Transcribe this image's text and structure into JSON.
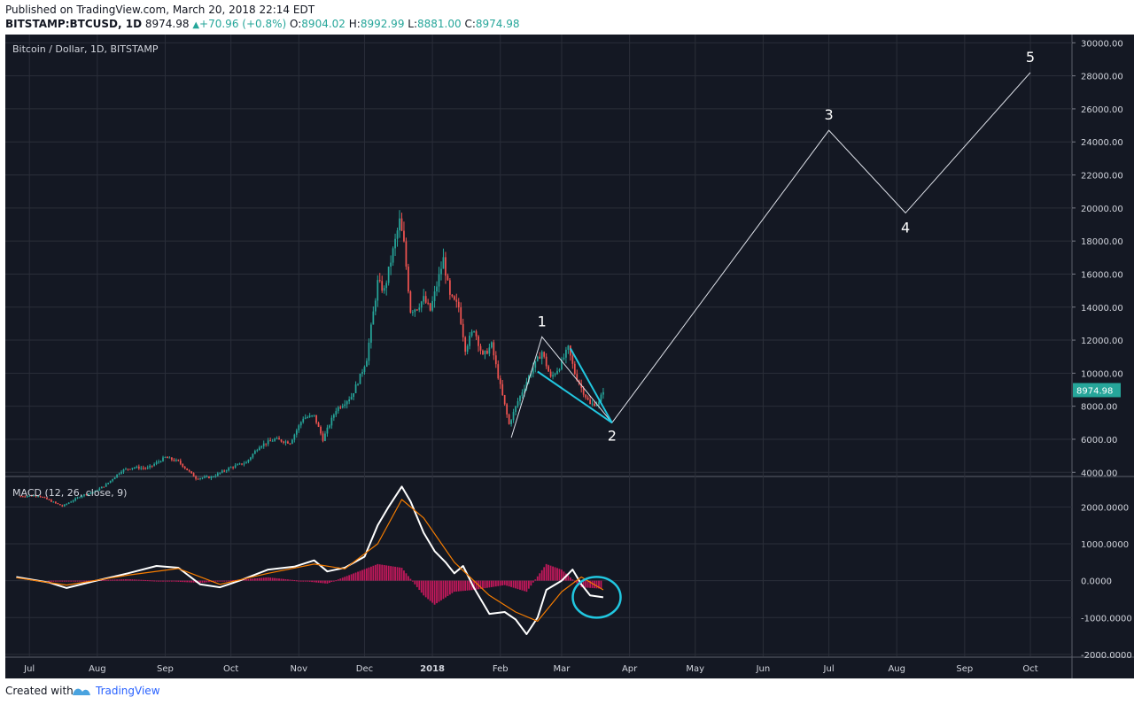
{
  "header": {
    "published": "Published on TradingView.com, March 20, 2018 22:14 EDT",
    "symbol": "BITSTAMP:BTCUSD, 1D",
    "last": "8974.98",
    "change": "+70.96 (+0.8%)",
    "o_label": "O:",
    "o": "8904.02",
    "h_label": "H:",
    "h": "8992.99",
    "l_label": "L:",
    "l": "8881.00",
    "c_label": "C:",
    "c": "8974.98"
  },
  "footer": {
    "created": "Created with",
    "brand": "TradingView",
    "logo_icon": "tradingview-logo-icon"
  },
  "colors": {
    "background": "#141823",
    "grid": "#2a2e39",
    "up": "#26a69a",
    "down": "#ef5350",
    "macd_line": "#ffffff",
    "signal_line": "#f57c00",
    "histogram": "#c2185b",
    "cyan": "#21c7e0",
    "price_badge": "#26a69a"
  },
  "chart_data": [
    {
      "type": "candlestick",
      "title": "Bitcoin / Dollar, 1D, BITSTAMP",
      "ylim": [
        3800,
        30500
      ],
      "y_ticks": [
        "30000.00",
        "28000.00",
        "26000.00",
        "24000.00",
        "22000.00",
        "20000.00",
        "18000.00",
        "16000.00",
        "14000.00",
        "12000.00",
        "10000.00",
        "8000.00",
        "6000.00",
        "4000.00"
      ],
      "x_ticks": [
        "Jul",
        "Aug",
        "Sep",
        "Oct",
        "Nov",
        "Dec",
        "2018",
        "Feb",
        "Mar",
        "Apr",
        "May",
        "Jun",
        "Jul",
        "Aug",
        "Sep",
        "Oct"
      ],
      "last_price_label": "8974.98",
      "price_path": [
        {
          "date": "2017-06-27",
          "close": 2550
        },
        {
          "date": "2017-07-05",
          "close": 2600
        },
        {
          "date": "2017-07-16",
          "close": 1950
        },
        {
          "date": "2017-07-25",
          "close": 2600
        },
        {
          "date": "2017-07-31",
          "close": 2850
        },
        {
          "date": "2017-08-05",
          "close": 3250
        },
        {
          "date": "2017-08-12",
          "close": 4100
        },
        {
          "date": "2017-08-17",
          "close": 4300
        },
        {
          "date": "2017-08-24",
          "close": 4250
        },
        {
          "date": "2017-09-01",
          "close": 4900
        },
        {
          "date": "2017-09-07",
          "close": 4650
        },
        {
          "date": "2017-09-15",
          "close": 3650
        },
        {
          "date": "2017-09-22",
          "close": 3700
        },
        {
          "date": "2017-10-01",
          "close": 4300
        },
        {
          "date": "2017-10-08",
          "close": 4600
        },
        {
          "date": "2017-10-14",
          "close": 5600
        },
        {
          "date": "2017-10-21",
          "close": 6000
        },
        {
          "date": "2017-10-28",
          "close": 5800
        },
        {
          "date": "2017-11-03",
          "close": 7300
        },
        {
          "date": "2017-11-08",
          "close": 7400
        },
        {
          "date": "2017-11-12",
          "close": 6000
        },
        {
          "date": "2017-11-18",
          "close": 7800
        },
        {
          "date": "2017-11-25",
          "close": 8600
        },
        {
          "date": "2017-11-29",
          "close": 9800
        },
        {
          "date": "2017-12-02",
          "close": 10900
        },
        {
          "date": "2017-12-07",
          "close": 15500
        },
        {
          "date": "2017-12-10",
          "close": 15000
        },
        {
          "date": "2017-12-13",
          "close": 16800
        },
        {
          "date": "2017-12-17",
          "close": 19200
        },
        {
          "date": "2017-12-19",
          "close": 17800
        },
        {
          "date": "2017-12-22",
          "close": 13800
        },
        {
          "date": "2017-12-25",
          "close": 14000
        },
        {
          "date": "2017-12-28",
          "close": 14500
        },
        {
          "date": "2017-12-31",
          "close": 13800
        },
        {
          "date": "2018-01-02",
          "close": 14800
        },
        {
          "date": "2018-01-06",
          "close": 16900
        },
        {
          "date": "2018-01-09",
          "close": 14600
        },
        {
          "date": "2018-01-13",
          "close": 14000
        },
        {
          "date": "2018-01-16",
          "close": 11500
        },
        {
          "date": "2018-01-20",
          "close": 12700
        },
        {
          "date": "2018-01-24",
          "close": 11000
        },
        {
          "date": "2018-01-28",
          "close": 11700
        },
        {
          "date": "2018-02-01",
          "close": 9200
        },
        {
          "date": "2018-02-05",
          "close": 6900
        },
        {
          "date": "2018-02-09",
          "close": 8300
        },
        {
          "date": "2018-02-15",
          "close": 10100
        },
        {
          "date": "2018-02-20",
          "close": 11300
        },
        {
          "date": "2018-02-24",
          "close": 9700
        },
        {
          "date": "2018-02-28",
          "close": 10400
        },
        {
          "date": "2018-03-04",
          "close": 11500
        },
        {
          "date": "2018-03-07",
          "close": 10000
        },
        {
          "date": "2018-03-10",
          "close": 9100
        },
        {
          "date": "2018-03-14",
          "close": 8100
        },
        {
          "date": "2018-03-18",
          "close": 8200
        },
        {
          "date": "2018-03-20",
          "close": 8975
        }
      ],
      "wave_projection": {
        "points": [
          {
            "label": "",
            "date": "2018-02-06",
            "price": 6100
          },
          {
            "label": "1",
            "date": "2018-02-20",
            "price": 12200
          },
          {
            "label": "2",
            "date": "2018-03-24",
            "price": 7000
          },
          {
            "label": "3",
            "date": "2018-07-01",
            "price": 24700
          },
          {
            "label": "4",
            "date": "2018-08-05",
            "price": 19700
          },
          {
            "label": "5",
            "date": "2018-10-01",
            "price": 28200
          }
        ]
      },
      "wedge": {
        "upper": [
          {
            "date": "2018-03-05",
            "price": 11500
          },
          {
            "date": "2018-03-24",
            "price": 7000
          }
        ],
        "lower": [
          {
            "date": "2018-02-18",
            "price": 10100
          },
          {
            "date": "2018-03-24",
            "price": 7000
          }
        ]
      }
    },
    {
      "type": "line",
      "title": "MACD (12, 26, close, 9)",
      "ylim": [
        -2050,
        2800
      ],
      "y_ticks": [
        "2000.0000",
        "1000.0000",
        "0.0000",
        "-1000.0000",
        "-2000.0000"
      ],
      "series": [
        {
          "name": "MACD",
          "points": [
            {
              "date": "2017-06-25",
              "value": 100
            },
            {
              "date": "2017-07-10",
              "value": -50
            },
            {
              "date": "2017-07-18",
              "value": -200
            },
            {
              "date": "2017-07-30",
              "value": -20
            },
            {
              "date": "2017-08-15",
              "value": 200
            },
            {
              "date": "2017-08-28",
              "value": 400
            },
            {
              "date": "2017-09-07",
              "value": 350
            },
            {
              "date": "2017-09-17",
              "value": -100
            },
            {
              "date": "2017-09-26",
              "value": -180
            },
            {
              "date": "2017-10-05",
              "value": 0
            },
            {
              "date": "2017-10-18",
              "value": 300
            },
            {
              "date": "2017-10-30",
              "value": 380
            },
            {
              "date": "2017-11-08",
              "value": 550
            },
            {
              "date": "2017-11-14",
              "value": 250
            },
            {
              "date": "2017-11-22",
              "value": 350
            },
            {
              "date": "2017-12-01",
              "value": 650
            },
            {
              "date": "2017-12-07",
              "value": 1500
            },
            {
              "date": "2017-12-12",
              "value": 2000
            },
            {
              "date": "2017-12-18",
              "value": 2550
            },
            {
              "date": "2017-12-22",
              "value": 2150
            },
            {
              "date": "2017-12-28",
              "value": 1300
            },
            {
              "date": "2018-01-02",
              "value": 800
            },
            {
              "date": "2018-01-07",
              "value": 500
            },
            {
              "date": "2018-01-11",
              "value": 200
            },
            {
              "date": "2018-01-15",
              "value": 400
            },
            {
              "date": "2018-01-20",
              "value": -200
            },
            {
              "date": "2018-01-27",
              "value": -900
            },
            {
              "date": "2018-02-03",
              "value": -850
            },
            {
              "date": "2018-02-08",
              "value": -1050
            },
            {
              "date": "2018-02-13",
              "value": -1450
            },
            {
              "date": "2018-02-18",
              "value": -1000
            },
            {
              "date": "2018-02-22",
              "value": -250
            },
            {
              "date": "2018-03-01",
              "value": 0
            },
            {
              "date": "2018-03-06",
              "value": 300
            },
            {
              "date": "2018-03-10",
              "value": -100
            },
            {
              "date": "2018-03-14",
              "value": -400
            },
            {
              "date": "2018-03-20",
              "value": -450
            }
          ]
        },
        {
          "name": "Signal",
          "points": [
            {
              "date": "2017-06-25",
              "value": 80
            },
            {
              "date": "2017-07-18",
              "value": -120
            },
            {
              "date": "2017-08-15",
              "value": 150
            },
            {
              "date": "2017-09-07",
              "value": 330
            },
            {
              "date": "2017-09-26",
              "value": -100
            },
            {
              "date": "2017-10-18",
              "value": 200
            },
            {
              "date": "2017-11-08",
              "value": 450
            },
            {
              "date": "2017-11-22",
              "value": 320
            },
            {
              "date": "2017-12-07",
              "value": 1000
            },
            {
              "date": "2017-12-18",
              "value": 2200
            },
            {
              "date": "2017-12-28",
              "value": 1700
            },
            {
              "date": "2018-01-11",
              "value": 500
            },
            {
              "date": "2018-01-27",
              "value": -400
            },
            {
              "date": "2018-02-08",
              "value": -850
            },
            {
              "date": "2018-02-18",
              "value": -1100
            },
            {
              "date": "2018-03-01",
              "value": -300
            },
            {
              "date": "2018-03-10",
              "value": 100
            },
            {
              "date": "2018-03-20",
              "value": -250
            }
          ]
        }
      ],
      "histogram": [
        {
          "date": "2017-07-10",
          "value": -30
        },
        {
          "date": "2017-08-15",
          "value": 40
        },
        {
          "date": "2017-09-17",
          "value": -60
        },
        {
          "date": "2017-10-18",
          "value": 90
        },
        {
          "date": "2017-11-14",
          "value": -80
        },
        {
          "date": "2017-12-07",
          "value": 450
        },
        {
          "date": "2017-12-18",
          "value": 350
        },
        {
          "date": "2017-12-28",
          "value": -400
        },
        {
          "date": "2018-01-02",
          "value": -650
        },
        {
          "date": "2018-01-11",
          "value": -300
        },
        {
          "date": "2018-01-20",
          "value": -250
        },
        {
          "date": "2018-02-03",
          "value": -120
        },
        {
          "date": "2018-02-13",
          "value": -300
        },
        {
          "date": "2018-02-22",
          "value": 450
        },
        {
          "date": "2018-03-01",
          "value": 300
        },
        {
          "date": "2018-03-10",
          "value": -180
        },
        {
          "date": "2018-03-20",
          "value": -220
        }
      ]
    }
  ]
}
